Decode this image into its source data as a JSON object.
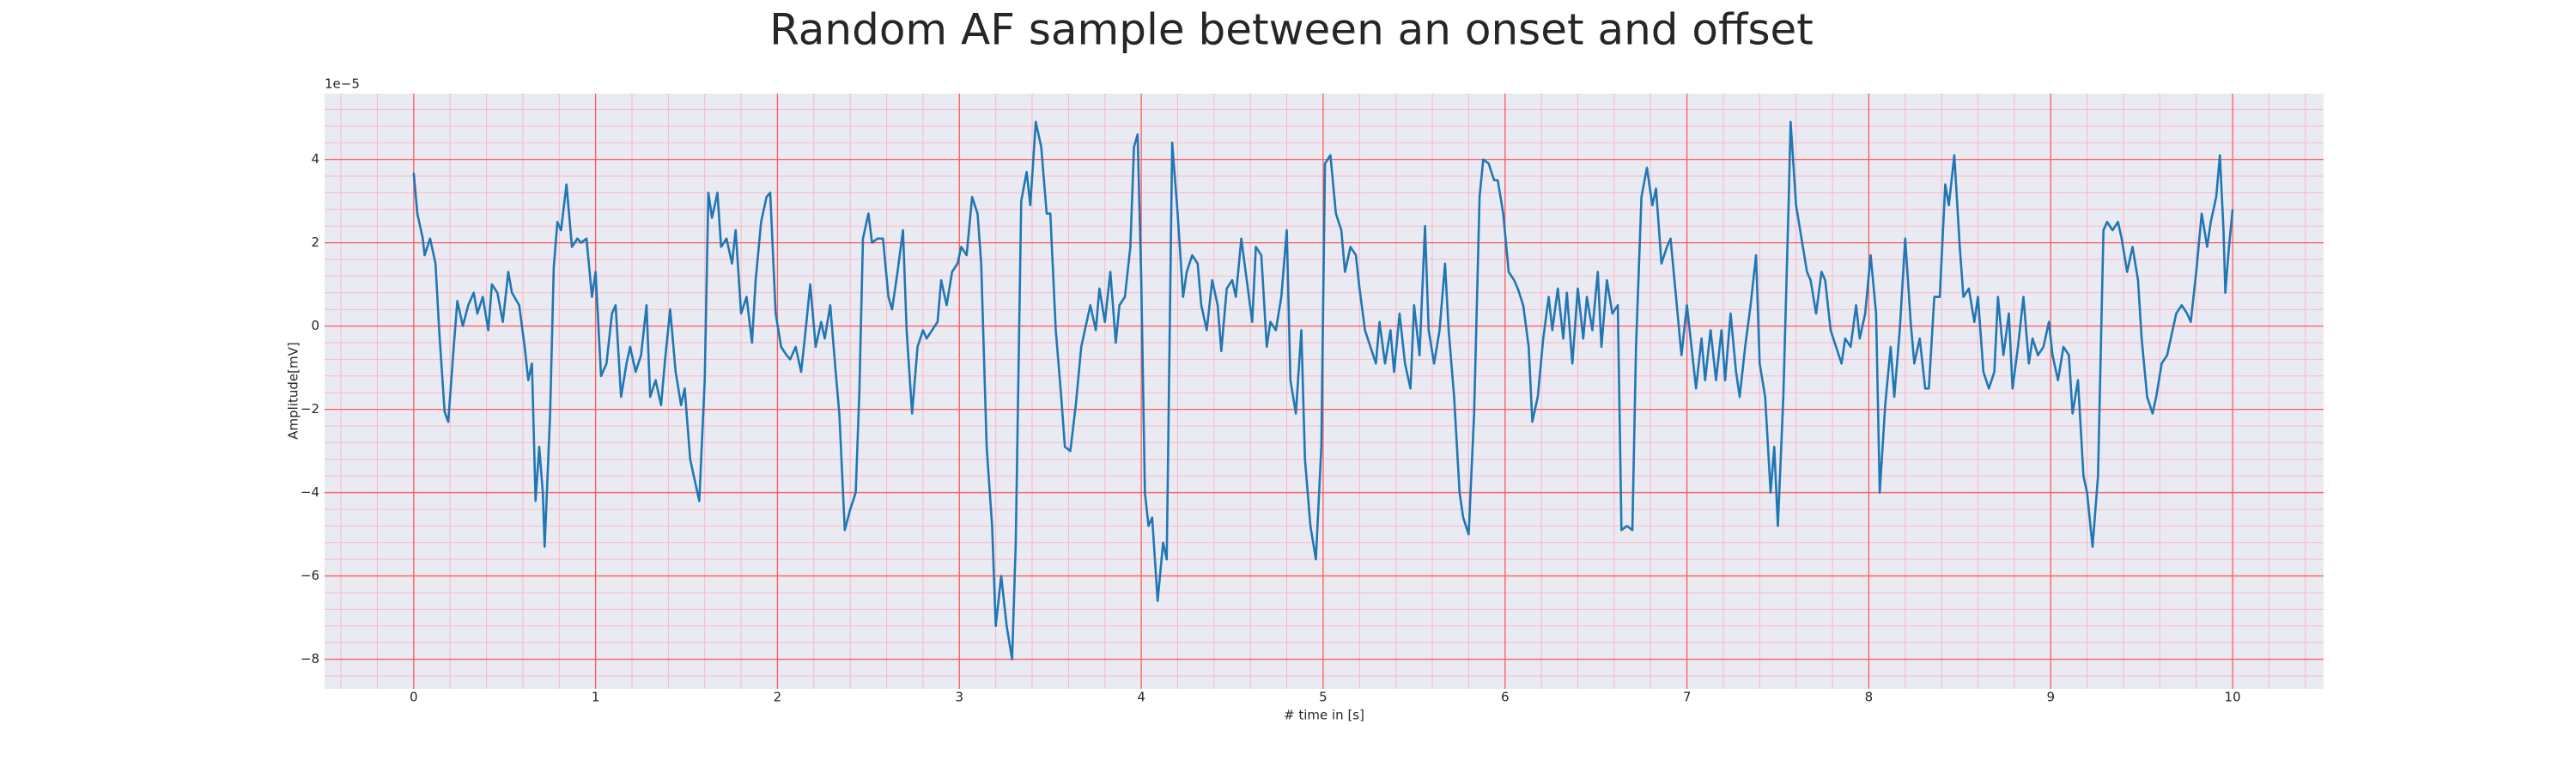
{
  "chart_data": {
    "type": "line",
    "title": "Random AF sample between an onset and offset",
    "xlabel": "# time in [s]",
    "ylabel": "Amplitude[mV]",
    "offset_label": "1e−5",
    "x": [
      0,
      0.02,
      0.05,
      0.06,
      0.09,
      0.12,
      0.14,
      0.17,
      0.19,
      0.22,
      0.24,
      0.27,
      0.3,
      0.33,
      0.35,
      0.38,
      0.41,
      0.43,
      0.46,
      0.49,
      0.52,
      0.54,
      0.58,
      0.61,
      0.63,
      0.65,
      0.67,
      0.69,
      0.71,
      0.72,
      0.75,
      0.77,
      0.79,
      0.81,
      0.84,
      0.87,
      0.9,
      0.92,
      0.95,
      0.98,
      1.0,
      1.03,
      1.06,
      1.09,
      1.11,
      1.14,
      1.17,
      1.19,
      1.22,
      1.25,
      1.28,
      1.3,
      1.33,
      1.36,
      1.38,
      1.41,
      1.44,
      1.47,
      1.49,
      1.52,
      1.55,
      1.57,
      1.6,
      1.62,
      1.64,
      1.67,
      1.69,
      1.72,
      1.75,
      1.77,
      1.8,
      1.83,
      1.86,
      1.88,
      1.91,
      1.94,
      1.96,
      1.99,
      2.02,
      2.05,
      2.07,
      2.1,
      2.13,
      2.15,
      2.18,
      2.21,
      2.24,
      2.26,
      2.29,
      2.32,
      2.34,
      2.37,
      2.4,
      2.43,
      2.45,
      2.47,
      2.5,
      2.52,
      2.55,
      2.58,
      2.61,
      2.63,
      2.66,
      2.69,
      2.71,
      2.74,
      2.77,
      2.8,
      2.82,
      2.85,
      2.88,
      2.9,
      2.93,
      2.96,
      2.99,
      3.01,
      3.04,
      3.07,
      3.1,
      3.12,
      3.15,
      3.18,
      3.2,
      3.23,
      3.26,
      3.29,
      3.31,
      3.34,
      3.37,
      3.39,
      3.42,
      3.45,
      3.48,
      3.5,
      3.53,
      3.56,
      3.58,
      3.61,
      3.64,
      3.67,
      3.69,
      3.72,
      3.75,
      3.77,
      3.8,
      3.83,
      3.86,
      3.88,
      3.91,
      3.94,
      3.96,
      3.98,
      4.0,
      4.02,
      4.04,
      4.06,
      4.09,
      4.12,
      4.14,
      4.17,
      4.2,
      4.23,
      4.25,
      4.28,
      4.31,
      4.33,
      4.36,
      4.39,
      4.42,
      4.44,
      4.47,
      4.5,
      4.52,
      4.55,
      4.58,
      4.61,
      4.63,
      4.66,
      4.69,
      4.71,
      4.74,
      4.77,
      4.8,
      4.82,
      4.85,
      4.88,
      4.9,
      4.93,
      4.96,
      4.99,
      5.01,
      5.04,
      5.07,
      5.1,
      5.12,
      5.15,
      5.18,
      5.2,
      5.23,
      5.26,
      5.29,
      5.31,
      5.34,
      5.37,
      5.39,
      5.42,
      5.45,
      5.48,
      5.5,
      5.53,
      5.56,
      5.58,
      5.61,
      5.64,
      5.67,
      5.69,
      5.72,
      5.75,
      5.77,
      5.8,
      5.83,
      5.86,
      5.88,
      5.91,
      5.94,
      5.96,
      5.99,
      6.02,
      6.05,
      6.07,
      6.1,
      6.13,
      6.15,
      6.18,
      6.21,
      6.24,
      6.26,
      6.29,
      6.32,
      6.34,
      6.37,
      6.4,
      6.43,
      6.45,
      6.48,
      6.51,
      6.53,
      6.56,
      6.59,
      6.62,
      6.64,
      6.67,
      6.7,
      6.72,
      6.75,
      6.78,
      6.81,
      6.83,
      6.86,
      6.89,
      6.91,
      6.94,
      6.97,
      7.0,
      7.02,
      7.05,
      7.08,
      7.1,
      7.13,
      7.16,
      7.19,
      7.21,
      7.24,
      7.27,
      7.29,
      7.32,
      7.35,
      7.38,
      7.4,
      7.43,
      7.46,
      7.48,
      7.5,
      7.53,
      7.56,
      7.57,
      7.6,
      7.63,
      7.66,
      7.68,
      7.71,
      7.74,
      7.76,
      7.79,
      7.82,
      7.85,
      7.87,
      7.9,
      7.93,
      7.95,
      7.98,
      8.01,
      8.04,
      8.06,
      8.09,
      8.12,
      8.14,
      8.17,
      8.2,
      8.23,
      8.25,
      8.28,
      8.31,
      8.33,
      8.36,
      8.39,
      8.42,
      8.44,
      8.47,
      8.5,
      8.52,
      8.55,
      8.58,
      8.6,
      8.63,
      8.66,
      8.69,
      8.71,
      8.74,
      8.77,
      8.79,
      8.82,
      8.85,
      8.88,
      8.9,
      8.93,
      8.96,
      8.99,
      9.01,
      9.04,
      9.07,
      9.1,
      9.12,
      9.15,
      9.18,
      9.2,
      9.23,
      9.26,
      9.29,
      9.31,
      9.34,
      9.37,
      9.39,
      9.42,
      9.45,
      9.48,
      9.5,
      9.53,
      9.56,
      9.58,
      9.61,
      9.64,
      9.67,
      9.69,
      9.72,
      9.75,
      9.77,
      9.8,
      9.83,
      9.86,
      9.88,
      9.91,
      9.93,
      9.95,
      9.96,
      9.98,
      10.0
    ],
    "series": [
      {
        "color": "#1f77b4",
        "values": [
          3.68,
          2.7,
          2.1,
          1.7,
          2.1,
          1.5,
          -0.1,
          -2.06,
          -2.3,
          -0.5,
          0.6,
          0,
          0.5,
          0.8,
          0.3,
          0.7,
          -0.1,
          1.0,
          0.8,
          0.1,
          1.3,
          0.8,
          0.5,
          -0.5,
          -1.3,
          -0.9,
          -4.2,
          -2.9,
          -4.0,
          -5.3,
          -2.1,
          1.4,
          2.5,
          2.3,
          3.4,
          1.9,
          2.1,
          2.0,
          2.1,
          0.7,
          1.3,
          -1.2,
          -0.9,
          0.3,
          0.5,
          -1.7,
          -0.9,
          -0.5,
          -1.1,
          -0.7,
          0.5,
          -1.7,
          -1.3,
          -1.9,
          -0.9,
          0.4,
          -1.1,
          -1.9,
          -1.5,
          -3.2,
          -3.8,
          -4.2,
          -1.3,
          3.2,
          2.6,
          3.2,
          1.9,
          2.1,
          1.5,
          2.3,
          0.3,
          0.7,
          -0.4,
          1.1,
          2.5,
          3.1,
          3.2,
          0.3,
          -0.5,
          -0.7,
          -0.8,
          -0.5,
          -1.1,
          -0.3,
          1.0,
          -0.5,
          0.1,
          -0.3,
          0.5,
          -1.1,
          -2.1,
          -4.9,
          -4.4,
          -4.0,
          -1.6,
          2.1,
          2.7,
          2.0,
          2.1,
          2.1,
          0.7,
          0.4,
          1.3,
          2.3,
          -0.1,
          -2.1,
          -0.5,
          -0.1,
          -0.3,
          -0.1,
          0.1,
          1.1,
          0.5,
          1.3,
          1.5,
          1.9,
          1.7,
          3.1,
          2.7,
          1.5,
          -2.9,
          -4.8,
          -7.2,
          -6.0,
          -7.2,
          -8.0,
          -5.2,
          3.0,
          3.7,
          2.9,
          4.9,
          4.3,
          2.7,
          2.7,
          -0.1,
          -1.7,
          -2.9,
          -3.0,
          -1.9,
          -0.5,
          -0.1,
          0.5,
          -0.1,
          0.9,
          0.1,
          1.3,
          -0.4,
          0.5,
          0.7,
          1.9,
          4.3,
          4.6,
          1.1,
          -4.0,
          -4.8,
          -4.6,
          -6.6,
          -5.2,
          -5.6,
          4.4,
          2.7,
          0.7,
          1.3,
          1.7,
          1.5,
          0.5,
          -0.1,
          1.1,
          0.5,
          -0.6,
          0.9,
          1.1,
          0.7,
          2.1,
          1.1,
          0.1,
          1.9,
          1.7,
          -0.5,
          0.1,
          -0.1,
          0.7,
          2.3,
          -1.3,
          -2.1,
          -0.1,
          -3.2,
          -4.8,
          -5.6,
          -2.9,
          3.9,
          4.1,
          2.7,
          2.3,
          1.3,
          1.9,
          1.7,
          0.9,
          -0.1,
          -0.5,
          -0.9,
          0.1,
          -0.9,
          -0.1,
          -1.1,
          0.3,
          -0.9,
          -1.5,
          0.5,
          -0.7,
          2.4,
          -0.1,
          -0.9,
          -0.1,
          1.5,
          -0.1,
          -1.7,
          -4.0,
          -4.6,
          -5.0,
          -2.1,
          3.1,
          4.0,
          3.9,
          3.5,
          3.5,
          2.7,
          1.3,
          1.1,
          0.9,
          0.5,
          -0.5,
          -2.3,
          -1.7,
          -0.3,
          0.7,
          -0.1,
          0.9,
          -0.3,
          0.8,
          -0.9,
          0.9,
          -0.3,
          0.7,
          -0.1,
          1.3,
          -0.5,
          1.1,
          0.3,
          0.5,
          -4.9,
          -4.8,
          -4.9,
          -0.5,
          3.1,
          3.8,
          2.9,
          3.3,
          1.5,
          1.9,
          2.1,
          0.7,
          -0.7,
          0.5,
          -0.3,
          -1.5,
          -0.3,
          -1.3,
          -0.1,
          -1.3,
          -0.1,
          -1.3,
          0.3,
          -1.1,
          -1.7,
          -0.5,
          0.5,
          1.7,
          -0.9,
          -1.7,
          -4.0,
          -2.9,
          -4.8,
          -1.7,
          3.1,
          4.9,
          2.9,
          2.1,
          1.3,
          1.1,
          0.3,
          1.3,
          1.1,
          -0.1,
          -0.5,
          -0.9,
          -0.3,
          -0.5,
          0.5,
          -0.3,
          0.3,
          1.7,
          0.3,
          -4.0,
          -1.9,
          -0.5,
          -1.7,
          -0.1,
          2.1,
          0.1,
          -0.9,
          -0.3,
          -1.5,
          -1.5,
          0.7,
          0.7,
          3.4,
          2.9,
          4.1,
          1.9,
          0.7,
          0.9,
          0.1,
          0.7,
          -1.1,
          -1.5,
          -1.1,
          0.7,
          -0.7,
          0.3,
          -1.5,
          -0.5,
          0.7,
          -0.9,
          -0.3,
          -0.7,
          -0.5,
          0.1,
          -0.7,
          -1.3,
          -0.5,
          -0.7,
          -2.1,
          -1.3,
          -3.6,
          -4.0,
          -5.3,
          -3.6,
          2.3,
          2.5,
          2.3,
          2.5,
          2.1,
          1.3,
          1.9,
          1.1,
          -0.3,
          -1.7,
          -2.1,
          -1.7,
          -0.9,
          -0.7,
          -0.1,
          0.3,
          0.5,
          0.3,
          0.1,
          1.3,
          2.7,
          1.9,
          2.5,
          3.1,
          4.1,
          2.3,
          0.8,
          1.9,
          2.8
        ]
      }
    ],
    "xlim": [
      -0.49,
      10.5
    ],
    "ylim": [
      -8.71,
      5.58
    ],
    "xticks": [
      0,
      1,
      2,
      3,
      4,
      5,
      6,
      7,
      8,
      9,
      10
    ],
    "yticks": [
      {
        "value": -8,
        "label": "−8"
      },
      {
        "value": -6,
        "label": "−6"
      },
      {
        "value": -4,
        "label": "−4"
      },
      {
        "value": -2,
        "label": "−2"
      },
      0,
      2,
      4
    ],
    "grid": true,
    "grid_color": "#ff5c5c",
    "minor_grid": true,
    "minor_grid_color": "#f6b9c6",
    "background": "#eaeaf2"
  }
}
